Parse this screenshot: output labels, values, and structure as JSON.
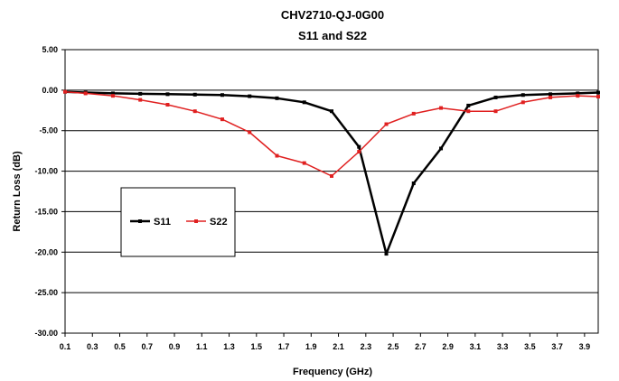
{
  "chart_data": {
    "type": "line",
    "title": "CHV2710-QJ-0G00",
    "subtitle": "S11 and S22",
    "xlabel": "Frequency (GHz)",
    "ylabel": "Return Loss (dB)",
    "xlim": [
      0.1,
      4.0
    ],
    "ylim": [
      -30,
      5
    ],
    "x_ticks": [
      "0.1",
      "0.3",
      "0.5",
      "0.7",
      "0.9",
      "1.1",
      "1.3",
      "1.5",
      "1.7",
      "1.9",
      "2.1",
      "2.3",
      "2.5",
      "2.7",
      "2.9",
      "3.1",
      "3.3",
      "3.5",
      "3.7",
      "3.9"
    ],
    "y_ticks": [
      "5.00",
      "0.00",
      "-5.00",
      "-10.00",
      "-15.00",
      "-20.00",
      "-25.00",
      "-30.00"
    ],
    "grid": "horizontal",
    "legend_position": "middle-left",
    "series": [
      {
        "name": "S11",
        "color": "#000000",
        "x": [
          0.1,
          0.25,
          0.45,
          0.65,
          0.85,
          1.05,
          1.25,
          1.45,
          1.65,
          1.85,
          2.05,
          2.25,
          2.45,
          2.65,
          2.85,
          3.05,
          3.25,
          3.45,
          3.65,
          3.85,
          4.0
        ],
        "y": [
          -0.2,
          -0.3,
          -0.4,
          -0.45,
          -0.5,
          -0.55,
          -0.6,
          -0.75,
          -1.0,
          -1.5,
          -2.6,
          -7.0,
          -20.2,
          -11.5,
          -7.2,
          -1.9,
          -0.9,
          -0.6,
          -0.5,
          -0.4,
          -0.3
        ]
      },
      {
        "name": "S22",
        "color": "#e02020",
        "x": [
          0.1,
          0.25,
          0.45,
          0.65,
          0.85,
          1.05,
          1.25,
          1.45,
          1.65,
          1.85,
          2.05,
          2.25,
          2.45,
          2.65,
          2.85,
          3.05,
          3.25,
          3.45,
          3.65,
          3.85,
          4.0
        ],
        "y": [
          -0.2,
          -0.4,
          -0.7,
          -1.2,
          -1.8,
          -2.6,
          -3.6,
          -5.2,
          -8.1,
          -9.0,
          -10.6,
          -7.6,
          -4.2,
          -2.9,
          -2.2,
          -2.6,
          -2.6,
          -1.5,
          -0.9,
          -0.7,
          -0.8
        ]
      }
    ]
  }
}
